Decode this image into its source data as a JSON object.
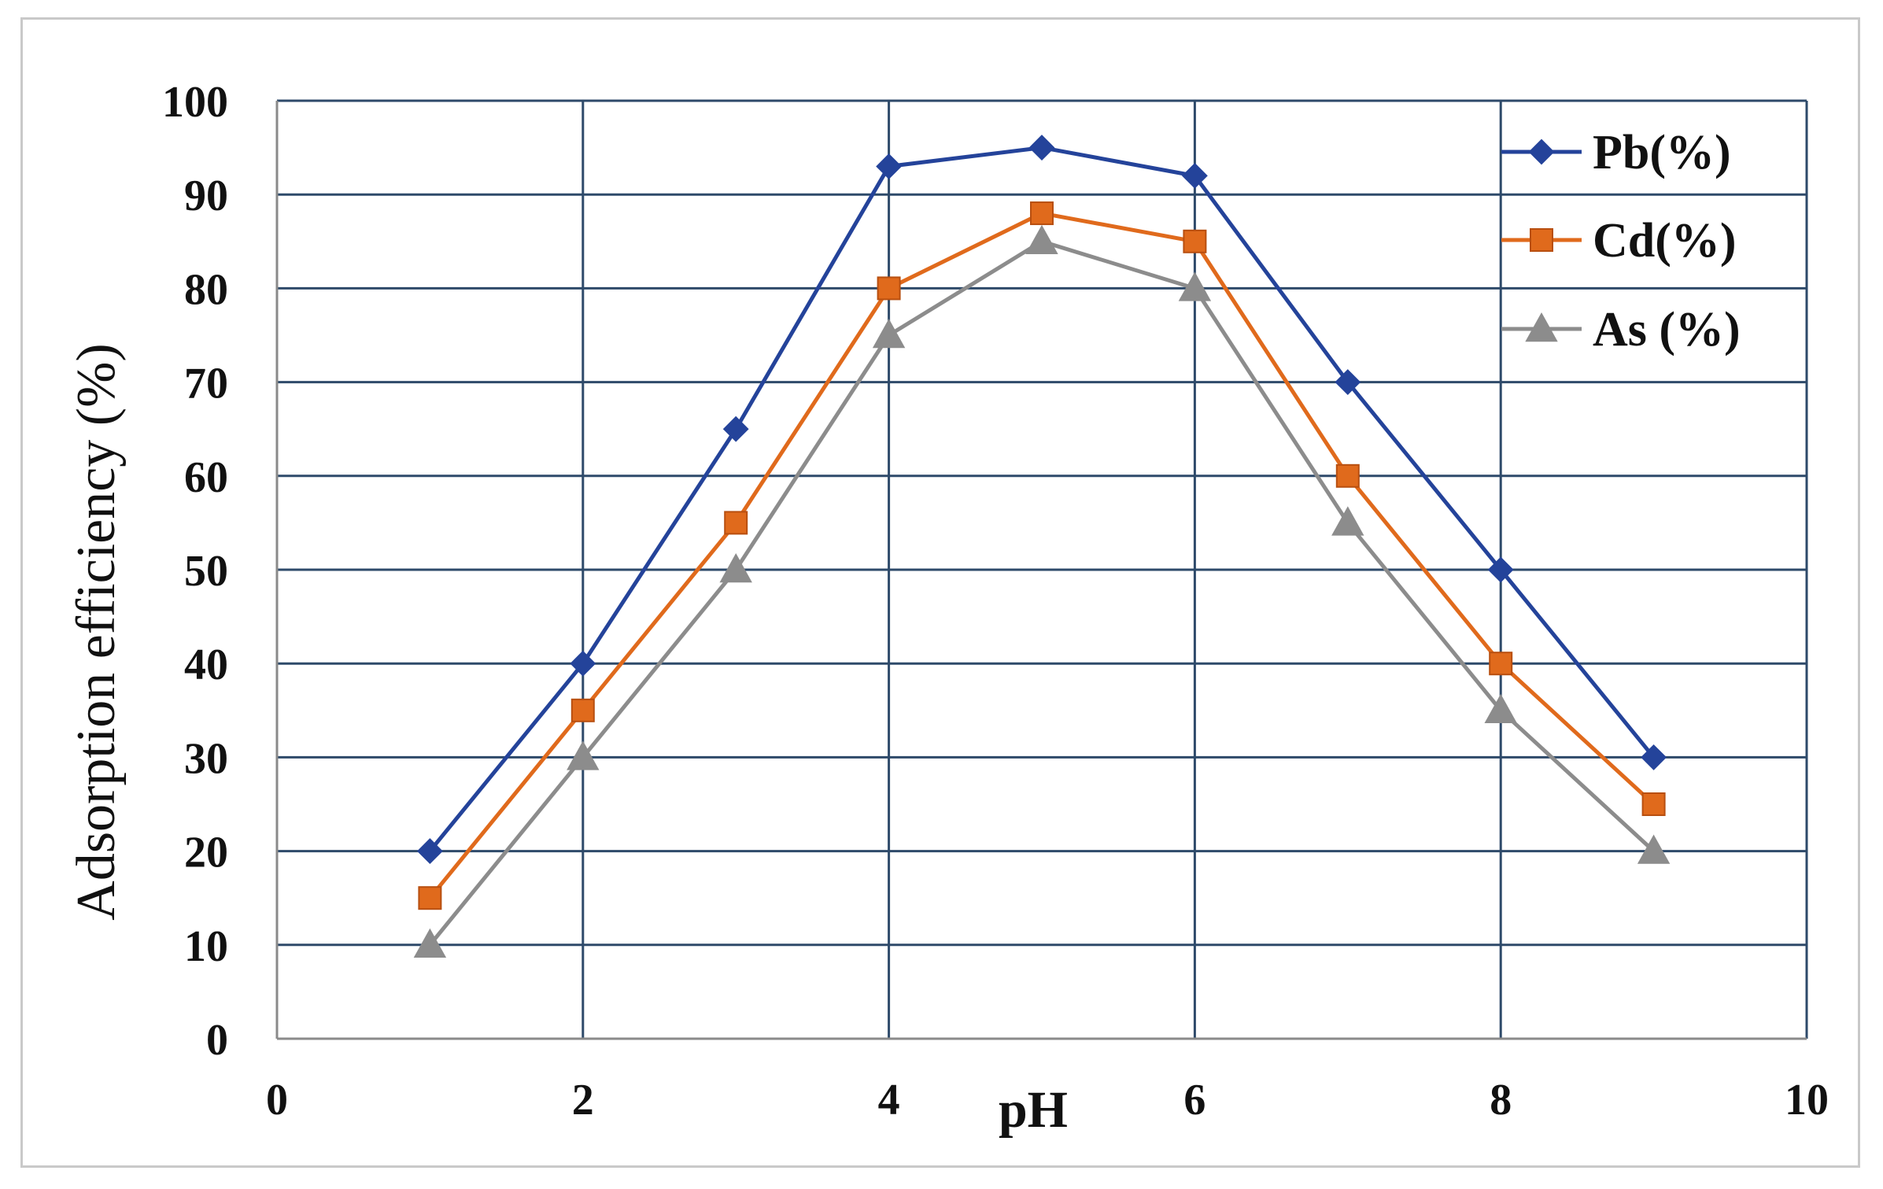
{
  "chart_data": {
    "type": "line",
    "title": "",
    "xlabel": "pH",
    "ylabel": "Adsorption efficiency (%)",
    "xlim": [
      0,
      10
    ],
    "ylim": [
      0,
      100
    ],
    "xticks": [
      0,
      2,
      4,
      6,
      8,
      10
    ],
    "yticks": [
      0,
      10,
      20,
      30,
      40,
      50,
      60,
      70,
      80,
      90,
      100
    ],
    "x_gridlines": [
      0,
      2,
      4,
      6,
      8,
      10
    ],
    "y_gridlines": [
      10,
      20,
      30,
      40,
      50,
      60,
      70,
      80,
      90,
      100
    ],
    "grid": true,
    "legend_position": "top-right",
    "x": [
      1,
      2,
      3,
      4,
      5,
      6,
      7,
      8,
      9
    ],
    "series": [
      {
        "name": "Pb(%)",
        "marker": "diamond",
        "color": "#24439a",
        "values": [
          20,
          40,
          65,
          93,
          95,
          92,
          70,
          50,
          30
        ]
      },
      {
        "name": "Cd(%)",
        "marker": "square",
        "color": "#e06a1c",
        "values": [
          15,
          35,
          55,
          80,
          88,
          85,
          60,
          40,
          25
        ]
      },
      {
        "name": "As (%)",
        "marker": "triangle",
        "color": "#8c8c8c",
        "values": [
          10,
          30,
          50,
          75,
          85,
          80,
          55,
          35,
          20
        ]
      }
    ]
  },
  "colors": {
    "grid": "#2e4a6a",
    "frame": "#c9c9c9",
    "text": "#111111"
  }
}
